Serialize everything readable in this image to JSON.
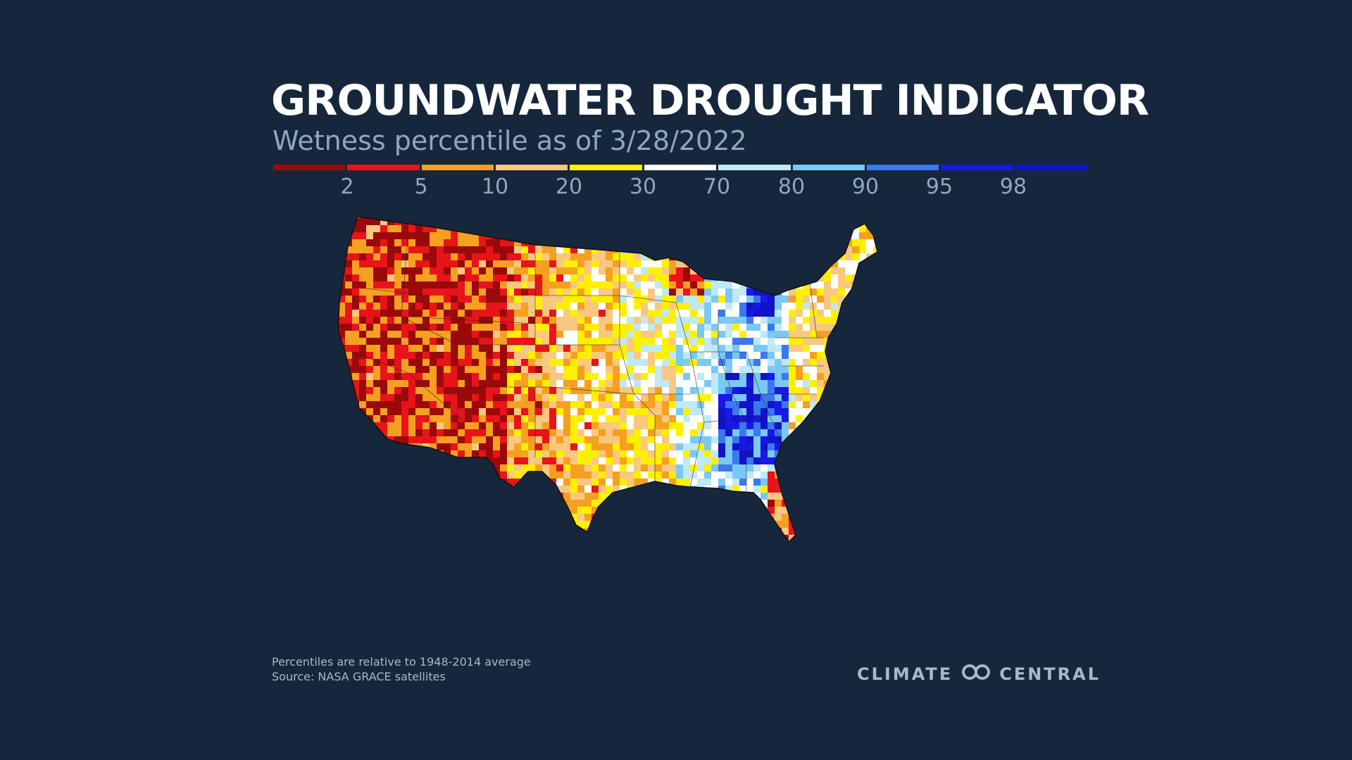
{
  "title": "GROUNDWATER DROUGHT INDICATOR",
  "subtitle": "Wetness percentile as of 3/28/2022",
  "legend": {
    "colors": [
      "#9a0a0a",
      "#e8141a",
      "#f5a020",
      "#f8c880",
      "#fff000",
      "#ffffff",
      "#bfe8f8",
      "#7ac8f4",
      "#3a78ee",
      "#1818e8",
      "#1212c8"
    ],
    "ticks": [
      "2",
      "5",
      "10",
      "20",
      "30",
      "70",
      "80",
      "90",
      "95",
      "98"
    ]
  },
  "map": {
    "type": "choropleth-grid",
    "region": "Contiguous United States",
    "variable": "Groundwater wetness percentile",
    "icon": "us-map-icon"
  },
  "footnote": {
    "line1": "Percentiles are relative to 1948-2014 average",
    "line2": "Source: NASA GRACE satellites"
  },
  "brand": {
    "left": "CLIMATE",
    "right": "CENTRAL",
    "logo_icon": "climate-central-logo-icon"
  }
}
